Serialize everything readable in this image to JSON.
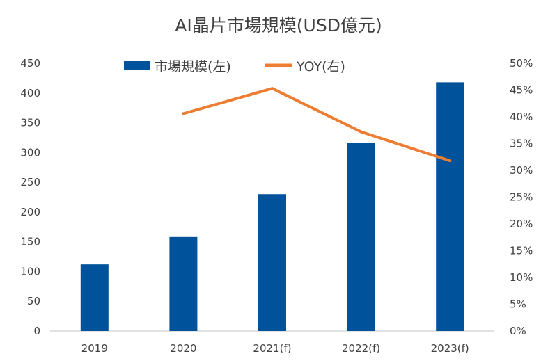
{
  "chart_data": {
    "type": "bar",
    "title": "AI晶片市場規模(USD億元)",
    "categories": [
      "2019",
      "2020",
      "2021(f)",
      "2022(f)",
      "2023(f)"
    ],
    "series": [
      {
        "name": "市場規模(左)",
        "type": "bar",
        "axis": "left",
        "color": "#00539B",
        "values": [
          112,
          158,
          230,
          316,
          418
        ]
      },
      {
        "name": "YOY(右)",
        "type": "line",
        "axis": "right",
        "color": "#ED7D31",
        "values": [
          null,
          0.406,
          0.453,
          0.372,
          0.318
        ]
      }
    ],
    "y_left": {
      "min": 0,
      "max": 450,
      "ticks": [
        "0",
        "50",
        "100",
        "150",
        "200",
        "250",
        "300",
        "350",
        "400",
        "450"
      ]
    },
    "y_right": {
      "min": 0,
      "max": 0.5,
      "ticks": [
        "0%",
        "5%",
        "10%",
        "15%",
        "20%",
        "25%",
        "30%",
        "35%",
        "40%",
        "45%",
        "50%"
      ]
    },
    "grid": false,
    "legend_position": "top-center"
  }
}
